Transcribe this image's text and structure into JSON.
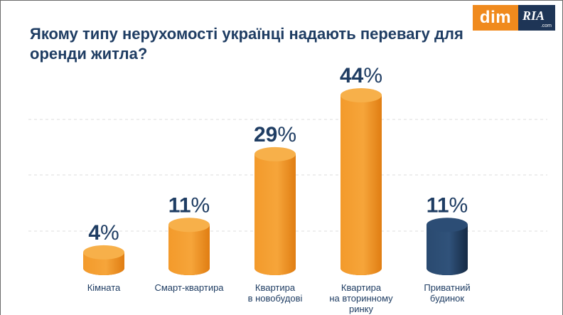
{
  "title": "Якому типу нерухомості українці надають перевагу для оренди житла?",
  "logo": {
    "dim": "dim",
    "ria": "RIA",
    "domain": ".com"
  },
  "colors": {
    "accent": "#f08a1d",
    "highlight": "#1e3556",
    "text": "#1f3d63"
  },
  "chart_data": {
    "type": "bar",
    "unit": "%",
    "categories": [
      [
        "Кімната"
      ],
      [
        "Смарт-квартира"
      ],
      [
        "Квартира",
        "в новобудові"
      ],
      [
        "Квартира",
        "на вторинному",
        "ринку"
      ],
      [
        "Приватний",
        "будинок"
      ]
    ],
    "values": [
      4,
      11,
      29,
      44,
      11
    ],
    "highlight_index": 4,
    "ylim": [
      0,
      44
    ],
    "grid": true
  }
}
